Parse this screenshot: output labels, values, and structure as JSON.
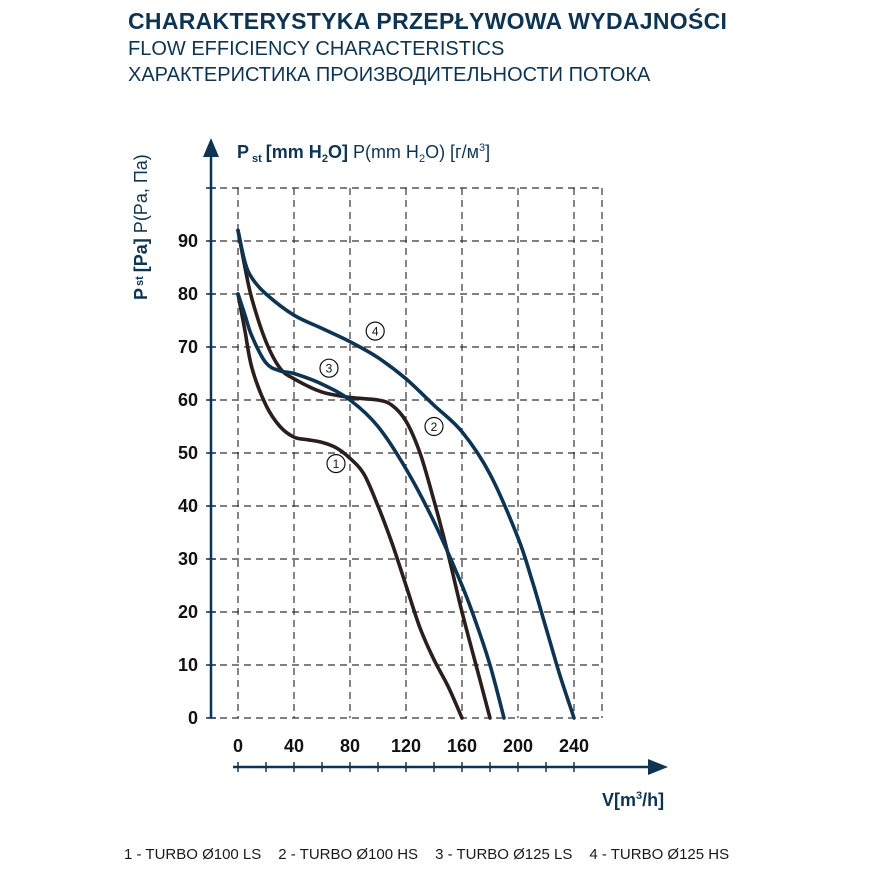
{
  "titles": {
    "pl": "CHARAKTERYSTYKA PRZEPŁYWOWA WYDAJNOŚCI",
    "en": "FLOW EFFICIENCY CHARACTERISTICS",
    "ru": "ХАРАКТЕРИСТИКА ПРОИЗВОДИТЕЛЬНОСТИ ПОТОКА"
  },
  "axis_titles": {
    "y_top_bold": "P",
    "y_top_sub": "st",
    "y_top_unit": "[mm H",
    "y_top_sub2": "2",
    "y_top_unit_end": "O]",
    "y_top_alt": "P(mm H",
    "y_top_alt_sub": "2",
    "y_top_alt_end": "O) [г/м",
    "y_top_alt_sup": "3",
    "y_top_alt_close": "]",
    "y_side_bold": "P",
    "y_side_sub": "st",
    "y_side_unit": "[Pa]",
    "y_side_alt": "P(Pa, Па)",
    "x_label": "V[m",
    "x_label_sup": "3",
    "x_label_end": "/h]"
  },
  "legend": {
    "items": [
      "1 - TURBO Ø100 LS",
      "2 - TURBO Ø100 HS",
      "3 - TURBO Ø125 LS",
      "4 - TURBO Ø125 HS"
    ]
  },
  "colors": {
    "dark": "#2a1f1d",
    "blue": "#0d3553",
    "grid": "#333333"
  },
  "chart_data": {
    "type": "line",
    "xlabel": "V[m3/h]",
    "ylabel": "Pst [Pa] P(Pa, Па)",
    "xlim": [
      0,
      260
    ],
    "ylim": [
      0,
      100
    ],
    "x_ticks": [
      0,
      40,
      80,
      120,
      160,
      200,
      240
    ],
    "y_ticks": [
      0,
      10,
      20,
      30,
      40,
      50,
      60,
      70,
      80,
      90
    ],
    "grid": true,
    "series": [
      {
        "marker": "1",
        "color": "#2a1f1d",
        "x": [
          0,
          5,
          10,
          20,
          30,
          40,
          50,
          60,
          70,
          80,
          90,
          100,
          110,
          120,
          130,
          140,
          150,
          160
        ],
        "y": [
          80,
          73,
          66,
          59,
          55,
          53,
          52.5,
          52,
          51,
          49,
          46,
          40,
          33,
          25,
          17,
          11,
          6,
          0
        ],
        "label_at": [
          70,
          48
        ]
      },
      {
        "marker": "2",
        "color": "#2a1f1d",
        "x": [
          0,
          5,
          10,
          20,
          30,
          40,
          60,
          80,
          100,
          110,
          120,
          130,
          140,
          150,
          160,
          170,
          180
        ],
        "y": [
          92,
          85,
          79,
          71,
          66,
          64,
          61.5,
          60.5,
          60,
          59,
          56,
          50,
          41,
          31,
          20,
          10,
          0
        ],
        "label_at": [
          140,
          55
        ]
      },
      {
        "marker": "3",
        "color": "#0d3553",
        "x": [
          0,
          5,
          10,
          20,
          30,
          40,
          60,
          80,
          100,
          120,
          140,
          160,
          170,
          180,
          190
        ],
        "y": [
          80,
          76,
          72,
          67,
          65.5,
          65,
          63,
          60,
          55,
          47,
          37,
          25,
          18,
          10,
          0
        ],
        "label_at": [
          65,
          66
        ]
      },
      {
        "marker": "4",
        "color": "#0d3553",
        "x": [
          0,
          5,
          10,
          20,
          40,
          60,
          80,
          100,
          120,
          140,
          160,
          180,
          200,
          210,
          220,
          230,
          240
        ],
        "y": [
          92,
          86,
          83,
          80,
          76,
          73.5,
          71,
          68,
          64,
          59,
          54,
          46,
          34,
          26,
          17,
          8,
          0
        ],
        "label_at": [
          98,
          73
        ]
      }
    ]
  }
}
